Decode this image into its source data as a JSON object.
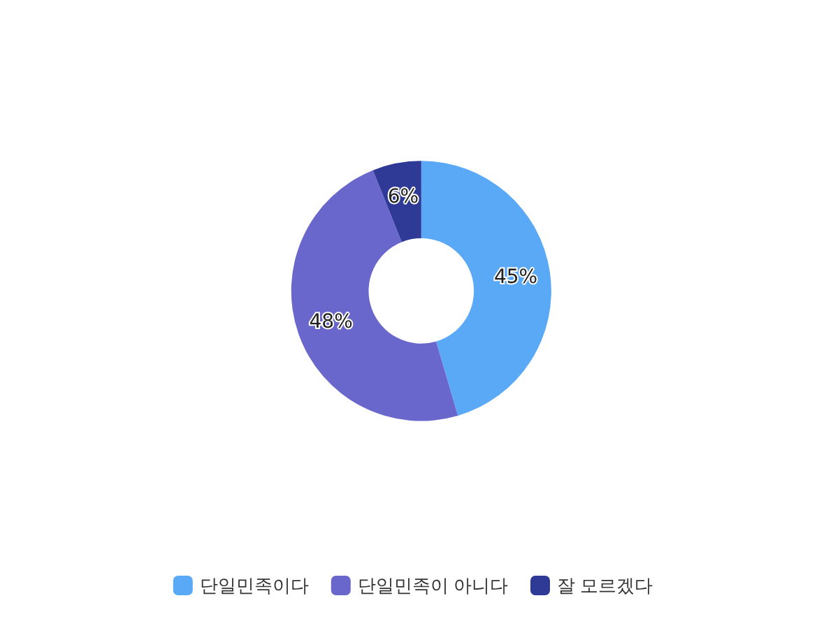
{
  "chart_data": {
    "type": "donut",
    "categories": [
      "단일민족이다",
      "단일민족이 아니다",
      "잘 모르겠다"
    ],
    "values": [
      45,
      48,
      6
    ],
    "value_labels": [
      "45%",
      "48%",
      "6%"
    ],
    "colors": [
      "#5aa9f7",
      "#6a67cc",
      "#2f3a96"
    ],
    "legend": "bottom"
  }
}
